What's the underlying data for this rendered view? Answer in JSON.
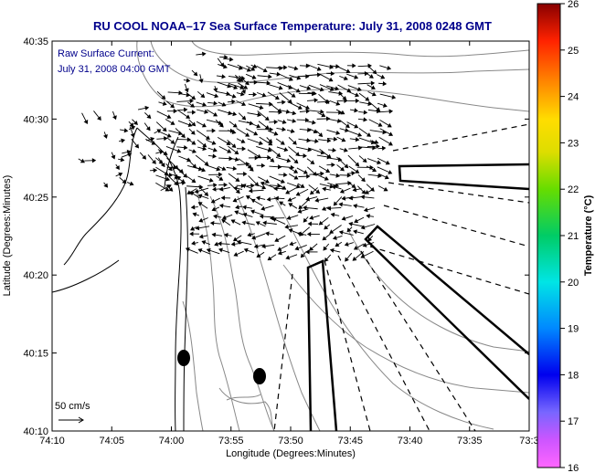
{
  "title": "RU COOL  NOAA–17  Sea Surface Temperature:  July 31, 2008 0248 GMT",
  "annotation": {
    "line1": "Raw Surface Current:",
    "line2": "July 31, 2008 04:00 GMT"
  },
  "scale_arrow_label": "50 cm/s",
  "xlabel": "Longitude (Degrees:Minutes)",
  "ylabel": "Latitude (Degrees:Minutes)",
  "x_ticks": [
    "74:10",
    "74:05",
    "74:00",
    "73:55",
    "73:50",
    "73:45",
    "73:40",
    "73:35",
    "73:3"
  ],
  "y_ticks": [
    "40:35",
    "40:30",
    "40:25",
    "40:20",
    "40:15",
    "40:10"
  ],
  "colorbar": {
    "label": "Temperature (°C)",
    "ticks": [
      "26",
      "25",
      "24",
      "23",
      "22",
      "21",
      "20",
      "19",
      "18",
      "17",
      "16"
    ],
    "range": [
      16,
      26
    ]
  },
  "colors": {
    "title": "#00008b",
    "annotation": "#00008b",
    "land_outline": "#000000",
    "bathymetry": "#888888",
    "vectors": "#000000"
  },
  "chart_data": {
    "type": "map",
    "xlim": [
      "74:10",
      "73:3"
    ],
    "ylim": [
      "40:10",
      "40:35"
    ],
    "layers": [
      "coastline",
      "bathymetry contours",
      "surface current vectors",
      "radial transect lines"
    ]
  }
}
